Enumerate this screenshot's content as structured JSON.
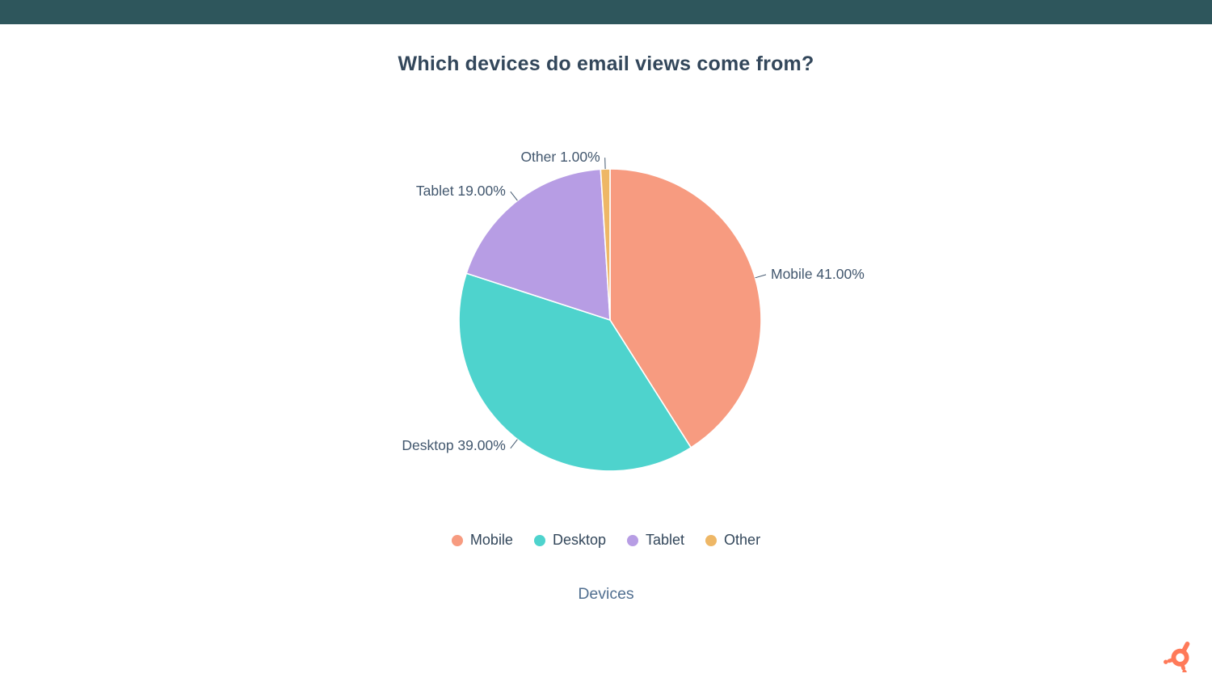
{
  "page": {
    "topbar_color": "#2e565c",
    "background_color": "#ffffff",
    "title_color": "#33475b"
  },
  "chart_data": {
    "type": "pie",
    "title": "Which devices do email views come from?",
    "xlabel": "Devices",
    "categories": [
      "Mobile",
      "Desktop",
      "Tablet",
      "Other"
    ],
    "values": [
      41.0,
      39.0,
      19.0,
      1.0
    ],
    "value_unit": "%",
    "slice_labels": [
      "Mobile 41.00%",
      "Desktop 39.00%",
      "Tablet 19.00%",
      "Other 1.00%"
    ],
    "colors": [
      "#f79b80",
      "#4ed3cd",
      "#b79de4",
      "#eeb766"
    ],
    "legend": [
      "Mobile",
      "Desktop",
      "Tablet",
      "Other"
    ],
    "legend_position": "bottom",
    "start_angle_deg": 0,
    "direction": "clockwise",
    "grid": false
  },
  "branding": {
    "logo": "hubspot-sprocket",
    "logo_color": "#ff7a59"
  }
}
